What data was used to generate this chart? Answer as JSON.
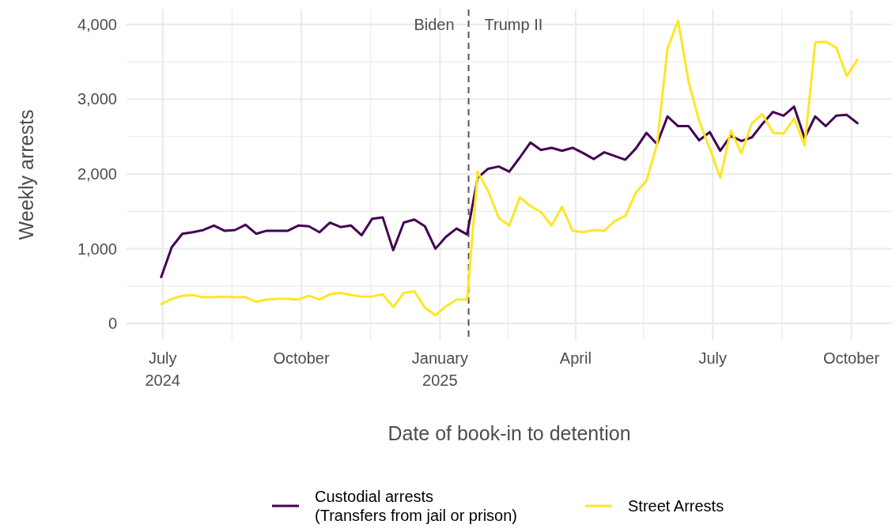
{
  "chart_data": {
    "type": "line",
    "xlabel": "Date of book-in to detention",
    "ylabel": "Weekly arrests",
    "x": [
      "2024-06-30",
      "2024-07-07",
      "2024-07-14",
      "2024-07-21",
      "2024-07-28",
      "2024-08-04",
      "2024-08-11",
      "2024-08-18",
      "2024-08-25",
      "2024-09-01",
      "2024-09-08",
      "2024-09-15",
      "2024-09-22",
      "2024-09-29",
      "2024-10-06",
      "2024-10-13",
      "2024-10-20",
      "2024-10-27",
      "2024-11-03",
      "2024-11-10",
      "2024-11-17",
      "2024-11-24",
      "2024-12-01",
      "2024-12-08",
      "2024-12-15",
      "2024-12-22",
      "2024-12-29",
      "2025-01-05",
      "2025-01-12",
      "2025-01-19",
      "2025-01-26",
      "2025-02-02",
      "2025-02-09",
      "2025-02-16",
      "2025-02-23",
      "2025-03-02",
      "2025-03-09",
      "2025-03-16",
      "2025-03-23",
      "2025-03-30",
      "2025-04-06",
      "2025-04-13",
      "2025-04-20",
      "2025-04-27",
      "2025-05-04",
      "2025-05-11",
      "2025-05-18",
      "2025-05-25",
      "2025-06-01",
      "2025-06-08",
      "2025-06-15",
      "2025-06-22",
      "2025-06-29",
      "2025-07-06",
      "2025-07-13",
      "2025-07-20",
      "2025-07-27",
      "2025-08-03",
      "2025-08-10",
      "2025-08-17",
      "2025-08-24",
      "2025-08-31",
      "2025-09-07",
      "2025-09-14",
      "2025-09-21",
      "2025-09-28",
      "2025-10-05"
    ],
    "series": [
      {
        "name": "Custodial arrests\n(Transfers from jail or prison)",
        "color": "#440154",
        "values": [
          620,
          1020,
          1200,
          1220,
          1250,
          1310,
          1240,
          1250,
          1320,
          1200,
          1240,
          1240,
          1240,
          1310,
          1300,
          1220,
          1350,
          1290,
          1310,
          1180,
          1400,
          1420,
          980,
          1350,
          1390,
          1300,
          1000,
          1160,
          1270,
          1190,
          1950,
          2070,
          2100,
          2030,
          2220,
          2420,
          2320,
          2350,
          2310,
          2350,
          2280,
          2200,
          2290,
          2240,
          2190,
          2340,
          2550,
          2400,
          2770,
          2640,
          2640,
          2450,
          2560,
          2310,
          2510,
          2440,
          2490,
          2670,
          2830,
          2780,
          2900,
          2480,
          2770,
          2640,
          2780,
          2790,
          2680
        ]
      },
      {
        "name": "Street Arrests",
        "color": "#fde725",
        "values": [
          260,
          330,
          370,
          380,
          350,
          350,
          360,
          350,
          350,
          290,
          320,
          330,
          330,
          320,
          370,
          320,
          390,
          410,
          380,
          360,
          360,
          390,
          220,
          410,
          430,
          210,
          110,
          230,
          320,
          320,
          2030,
          1770,
          1410,
          1310,
          1690,
          1570,
          1490,
          1310,
          1560,
          1240,
          1220,
          1250,
          1240,
          1370,
          1440,
          1750,
          1910,
          2390,
          3680,
          4050,
          3230,
          2710,
          2340,
          1950,
          2580,
          2280,
          2680,
          2800,
          2550,
          2540,
          2740,
          2380,
          3760,
          3770,
          3690,
          3310,
          3530
        ]
      }
    ],
    "xlim": [
      "2024-06-07",
      "2025-10-28"
    ],
    "xticks": [
      {
        "value": "2024-07-01",
        "label": "July\n2024"
      },
      {
        "value": "2024-08-16",
        "label": null
      },
      {
        "value": "2024-10-01",
        "label": "October"
      },
      {
        "value": "2024-11-16",
        "label": null
      },
      {
        "value": "2025-01-01",
        "label": "January\n2025"
      },
      {
        "value": "2025-02-15",
        "label": null
      },
      {
        "value": "2025-04-01",
        "label": "April"
      },
      {
        "value": "2025-05-16",
        "label": null
      },
      {
        "value": "2025-07-01",
        "label": "July"
      },
      {
        "value": "2025-08-16",
        "label": null
      },
      {
        "value": "2025-10-01",
        "label": "October"
      }
    ],
    "ylim": [
      -220,
      4200
    ],
    "yticks": [
      {
        "value": 0,
        "label": "0"
      },
      {
        "value": 500,
        "label": null
      },
      {
        "value": 1000,
        "label": "1,000"
      },
      {
        "value": 1500,
        "label": null
      },
      {
        "value": 2000,
        "label": "2,000"
      },
      {
        "value": 2500,
        "label": null
      },
      {
        "value": 3000,
        "label": "3,000"
      },
      {
        "value": 3500,
        "label": null
      },
      {
        "value": 4000,
        "label": "4,000"
      }
    ],
    "grid": true,
    "legend": "bottom",
    "line_style": "solid",
    "marker": "none",
    "ref_lines": [
      {
        "axis": "x",
        "value": "2025-01-20",
        "color": "#555555",
        "line_style": "dashed"
      }
    ],
    "annotations": [
      {
        "text": "Biden",
        "x": "2025-01-20",
        "y": 4000
      },
      {
        "text": "Trump II",
        "x": "2025-01-20",
        "y": 4000
      }
    ]
  }
}
